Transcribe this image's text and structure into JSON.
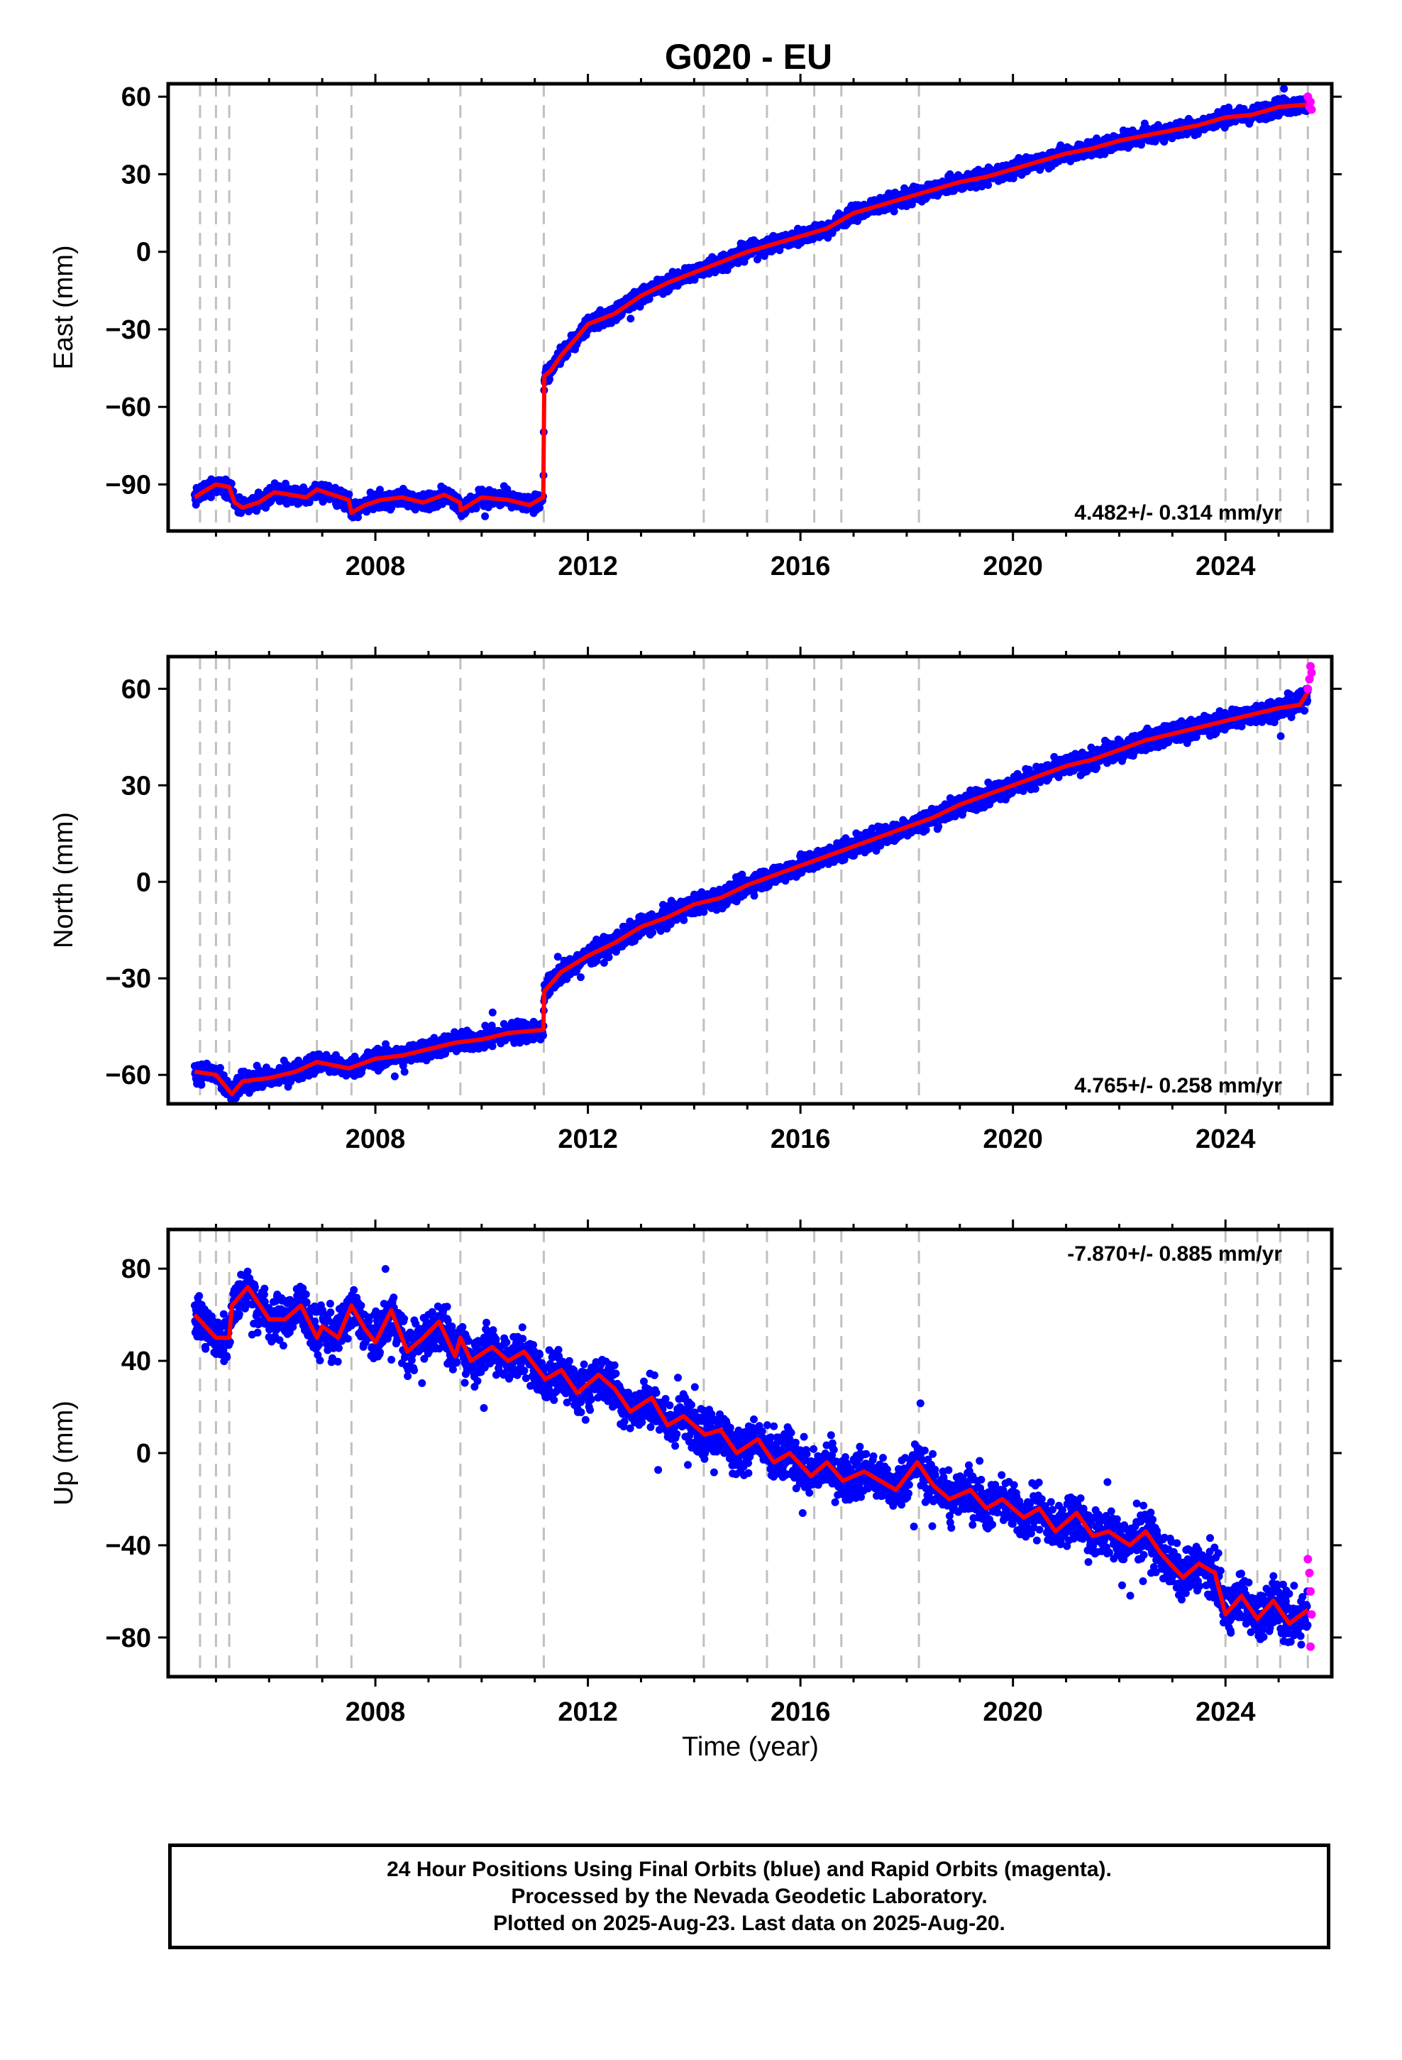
{
  "title": "G020 - EU",
  "xlabel": "Time (year)",
  "caption": [
    "24 Hour Positions Using Final Orbits (blue) and Rapid Orbits (magenta).",
    "Processed by the Nevada Geodetic Laboratory.",
    "Plotted on 2025-Aug-23. Last data on 2025-Aug-20."
  ],
  "colors": {
    "final": "#0000ff",
    "rapid": "#ff00ff",
    "model": "#ff0000",
    "events": "#c0c0c0"
  },
  "chart_data": [
    {
      "type": "scatter",
      "ylabel": "East (mm)",
      "xlim": [
        2004.1,
        2026.0
      ],
      "ylim": [
        -108,
        65
      ],
      "yticks": [
        60,
        30,
        0,
        -30,
        -60,
        -90
      ],
      "ytick_labels": [
        "60",
        "30",
        "0",
        "−30",
        "−60",
        "−90"
      ],
      "xticks": [
        2008,
        2012,
        2016,
        2020,
        2024
      ],
      "xtick_labels": [
        "2008",
        "2012",
        "2016",
        "2020",
        "2024"
      ],
      "rate_text": "4.482+/- 0.314 mm/yr",
      "rate_position": "bottom-right",
      "event_lines": [
        2004.7,
        2005.0,
        2005.25,
        2006.9,
        2007.55,
        2009.6,
        2011.17,
        2014.18,
        2015.37,
        2016.26,
        2016.77,
        2018.23,
        2024.0,
        2024.6,
        2025.03,
        2025.55
      ],
      "model_x": [
        2004.6,
        2004.75,
        2005.0,
        2005.25,
        2005.35,
        2005.5,
        2005.8,
        2006.1,
        2006.4,
        2006.7,
        2006.9,
        2007.2,
        2007.5,
        2007.55,
        2007.8,
        2008.1,
        2008.5,
        2008.9,
        2009.3,
        2009.59,
        2009.61,
        2010.0,
        2010.5,
        2010.9,
        2011.16,
        2011.18,
        2011.3,
        2011.5,
        2011.8,
        2012.0,
        2012.5,
        2013.0,
        2013.5,
        2014.0,
        2014.5,
        2015.0,
        2015.5,
        2016.0,
        2016.5,
        2017.0,
        2017.5,
        2018.0,
        2018.5,
        2019.0,
        2019.5,
        2020.0,
        2020.5,
        2021.0,
        2021.5,
        2022.0,
        2022.5,
        2023.0,
        2023.5,
        2024.0,
        2024.5,
        2025.0,
        2025.55
      ],
      "model_y": [
        -95,
        -93,
        -90,
        -91,
        -97,
        -99,
        -97,
        -93,
        -94,
        -95,
        -92,
        -94,
        -96,
        -101,
        -98,
        -96,
        -95,
        -97,
        -94,
        -97,
        -100,
        -95,
        -96,
        -98,
        -95,
        -48,
        -46,
        -40,
        -33,
        -28,
        -24,
        -17,
        -12,
        -8,
        -4,
        0,
        3,
        6,
        9,
        15,
        18,
        21,
        24,
        27,
        29,
        32,
        35,
        38,
        40,
        43,
        45,
        47,
        49,
        52,
        53,
        56,
        57
      ],
      "rapid_x": [
        2025.55,
        2025.58,
        2025.6,
        2025.62
      ],
      "rapid_y": [
        60,
        56,
        58,
        55
      ]
    },
    {
      "type": "scatter",
      "ylabel": "North (mm)",
      "xlim": [
        2004.1,
        2026.0
      ],
      "ylim": [
        -69,
        70
      ],
      "yticks": [
        60,
        30,
        0,
        -30,
        -60
      ],
      "ytick_labels": [
        "60",
        "30",
        "0",
        "−30",
        "−60"
      ],
      "xticks": [
        2008,
        2012,
        2016,
        2020,
        2024
      ],
      "xtick_labels": [
        "2008",
        "2012",
        "2016",
        "2020",
        "2024"
      ],
      "rate_text": "4.765+/- 0.258 mm/yr",
      "rate_position": "bottom-right",
      "event_lines": [
        2004.7,
        2005.0,
        2005.25,
        2006.9,
        2007.55,
        2009.6,
        2011.17,
        2014.18,
        2015.37,
        2016.26,
        2016.77,
        2018.23,
        2024.0,
        2024.6,
        2025.03,
        2025.55
      ],
      "model_x": [
        2004.6,
        2005.0,
        2005.3,
        2005.5,
        2006.0,
        2006.5,
        2006.9,
        2007.5,
        2008.0,
        2008.5,
        2009.0,
        2009.5,
        2010.0,
        2010.5,
        2011.16,
        2011.18,
        2011.5,
        2012.0,
        2012.5,
        2013.0,
        2013.5,
        2014.0,
        2014.5,
        2015.0,
        2015.5,
        2016.0,
        2016.5,
        2017.0,
        2017.5,
        2018.0,
        2018.5,
        2019.0,
        2019.5,
        2020.0,
        2020.5,
        2021.0,
        2021.5,
        2022.0,
        2022.5,
        2023.0,
        2023.5,
        2024.0,
        2024.5,
        2025.0,
        2025.4,
        2025.55
      ],
      "model_y": [
        -59,
        -60,
        -66,
        -62,
        -61,
        -59,
        -56,
        -58,
        -55,
        -54,
        -52,
        -50,
        -49,
        -47,
        -46,
        -34,
        -28,
        -23,
        -19,
        -14,
        -11,
        -7,
        -5,
        -1,
        2,
        5,
        8,
        11,
        14,
        17,
        20,
        24,
        27,
        30,
        33,
        36,
        38,
        41,
        44,
        46,
        48,
        50,
        52,
        54,
        55,
        59
      ],
      "rapid_x": [
        2025.55,
        2025.58,
        2025.6,
        2025.62
      ],
      "rapid_y": [
        60,
        63,
        67,
        65
      ]
    },
    {
      "type": "scatter",
      "ylabel": "Up (mm)",
      "xlim": [
        2004.1,
        2026.0
      ],
      "ylim": [
        -97,
        97
      ],
      "yticks": [
        80,
        40,
        0,
        -40,
        -80
      ],
      "ytick_labels": [
        "80",
        "40",
        "0",
        "−40",
        "−80"
      ],
      "xticks": [
        2008,
        2012,
        2016,
        2020,
        2024
      ],
      "xtick_labels": [
        "2008",
        "2012",
        "2016",
        "2020",
        "2024"
      ],
      "rate_text": "-7.870+/- 0.885 mm/yr",
      "rate_position": "top-right",
      "event_lines": [
        2004.7,
        2005.0,
        2005.25,
        2006.9,
        2007.55,
        2009.6,
        2011.17,
        2014.18,
        2015.37,
        2016.26,
        2016.77,
        2018.23,
        2024.0,
        2024.6,
        2025.03,
        2025.55
      ],
      "model_x": [
        2004.6,
        2004.8,
        2005.0,
        2005.1,
        2005.25,
        2005.3,
        2005.6,
        2006.0,
        2006.3,
        2006.6,
        2006.9,
        2007.0,
        2007.3,
        2007.55,
        2007.8,
        2008.0,
        2008.3,
        2008.6,
        2008.9,
        2009.2,
        2009.5,
        2009.6,
        2009.8,
        2010.2,
        2010.5,
        2010.8,
        2011.2,
        2011.5,
        2011.8,
        2012.2,
        2012.5,
        2012.8,
        2013.2,
        2013.5,
        2013.8,
        2014.2,
        2014.5,
        2014.8,
        2015.2,
        2015.5,
        2015.8,
        2016.2,
        2016.5,
        2016.8,
        2017.2,
        2017.5,
        2017.8,
        2018.2,
        2018.5,
        2018.8,
        2019.2,
        2019.5,
        2019.8,
        2020.2,
        2020.5,
        2020.8,
        2021.2,
        2021.5,
        2021.8,
        2022.2,
        2022.5,
        2022.8,
        2023.2,
        2023.5,
        2023.8,
        2024.0,
        2024.3,
        2024.6,
        2024.9,
        2025.2,
        2025.55
      ],
      "model_y": [
        60,
        55,
        50,
        50,
        50,
        64,
        72,
        58,
        58,
        64,
        50,
        55,
        50,
        64,
        54,
        48,
        62,
        44,
        50,
        57,
        42,
        50,
        40,
        46,
        40,
        44,
        32,
        36,
        26,
        34,
        28,
        18,
        24,
        12,
        16,
        8,
        10,
        0,
        6,
        -4,
        0,
        -10,
        -4,
        -12,
        -8,
        -12,
        -16,
        -4,
        -14,
        -20,
        -16,
        -24,
        -20,
        -28,
        -24,
        -34,
        -26,
        -36,
        -34,
        -40,
        -34,
        -44,
        -54,
        -48,
        -52,
        -70,
        -62,
        -72,
        -64,
        -74,
        -68
      ],
      "rapid_x": [
        2025.55,
        2025.58,
        2025.6,
        2025.6,
        2025.62
      ],
      "rapid_y": [
        -46,
        -52,
        -60,
        -84,
        -70
      ]
    }
  ]
}
